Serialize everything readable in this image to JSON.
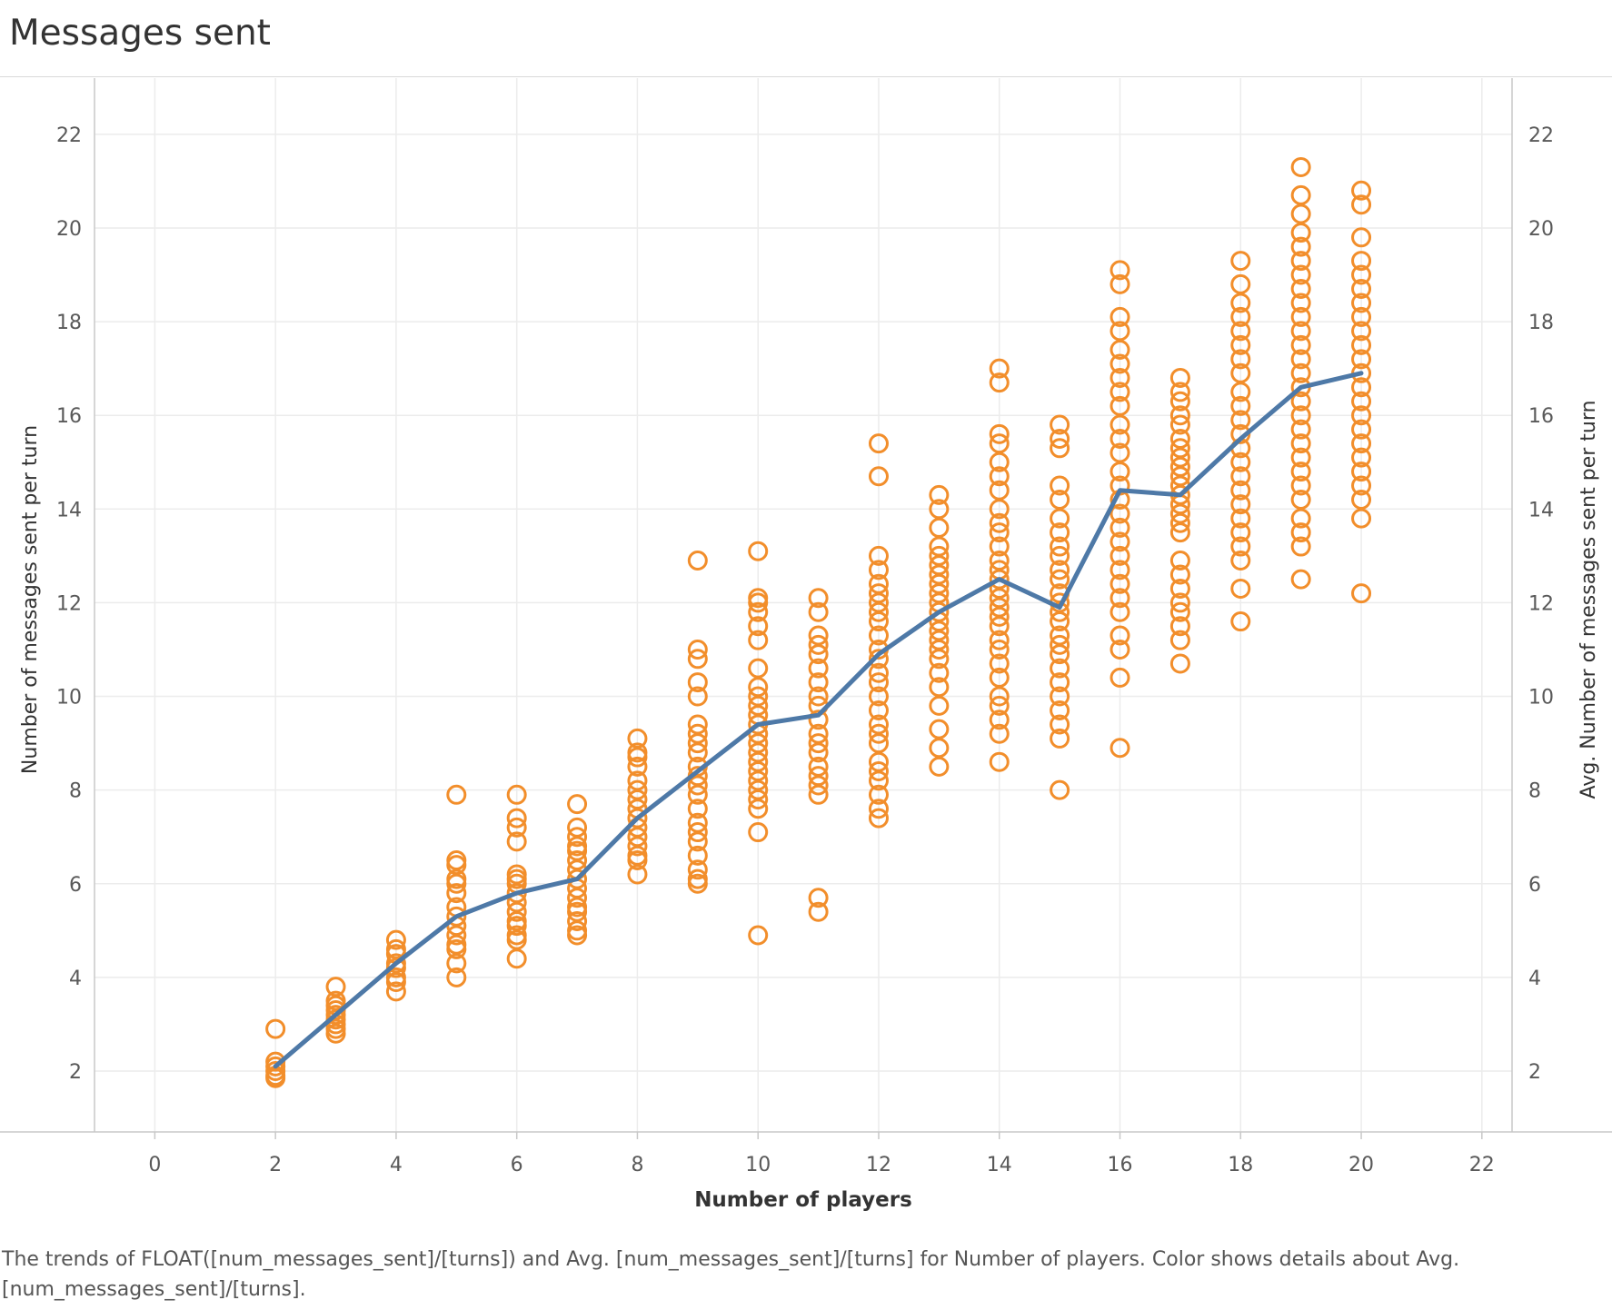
{
  "title": "Messages sent",
  "caption": "The trends of FLOAT([num_messages_sent]/[turns]) and Avg. [num_messages_sent]/[turns] for Number of players.  Color shows details about Avg. [num_messages_sent]/[turns].",
  "colors": {
    "points": "#f28e2b",
    "line": "#4e79a7",
    "grid": "#ececec"
  },
  "chart_data": {
    "type": "scatter",
    "xlabel": "Number of players",
    "ylabel": "Number of messages sent per turn",
    "ylabel_right": "Avg. Number of messages sent per turn",
    "xlim": [
      -1,
      22.5
    ],
    "ylim": [
      0.7,
      23.2
    ],
    "xticks": [
      0,
      2,
      4,
      6,
      8,
      10,
      12,
      14,
      16,
      18,
      20,
      22
    ],
    "yticks": [
      2,
      4,
      6,
      8,
      10,
      12,
      14,
      16,
      18,
      20,
      22
    ],
    "grid": true,
    "series": [
      {
        "name": "FLOAT([num_messages_sent]/[turns])",
        "type": "scatter",
        "groups": [
          {
            "x": 2,
            "y": [
              2.9,
              2.2,
              2.1,
              2.0,
              1.9,
              1.85
            ]
          },
          {
            "x": 3,
            "y": [
              3.8,
              3.5,
              3.4,
              3.3,
              3.2,
              3.1,
              3.0,
              2.9,
              2.8
            ]
          },
          {
            "x": 4,
            "y": [
              4.8,
              4.6,
              4.5,
              4.3,
              4.2,
              4.0,
              3.9,
              3.7
            ]
          },
          {
            "x": 5,
            "y": [
              7.9,
              6.5,
              6.4,
              6.1,
              6.0,
              5.8,
              5.5,
              5.3,
              5.1,
              4.9,
              4.7,
              4.6,
              4.3,
              4.0
            ]
          },
          {
            "x": 6,
            "y": [
              7.9,
              7.4,
              7.2,
              6.9,
              6.2,
              6.1,
              6.0,
              5.8,
              5.6,
              5.4,
              5.2,
              5.1,
              4.9,
              4.8,
              4.4
            ]
          },
          {
            "x": 7,
            "y": [
              7.7,
              7.2,
              7.0,
              6.8,
              6.7,
              6.5,
              6.3,
              6.1,
              5.9,
              5.7,
              5.5,
              5.4,
              5.2,
              5.0,
              4.9
            ]
          },
          {
            "x": 8,
            "y": [
              9.1,
              8.8,
              8.7,
              8.5,
              8.2,
              8.0,
              7.8,
              7.6,
              7.4,
              7.2,
              7.0,
              6.8,
              6.6,
              6.5,
              6.2
            ]
          },
          {
            "x": 9,
            "y": [
              12.9,
              11.0,
              10.8,
              10.3,
              10.0,
              9.4,
              9.2,
              9.0,
              8.8,
              8.5,
              8.3,
              8.1,
              7.9,
              7.6,
              7.3,
              7.1,
              6.9,
              6.6,
              6.3,
              6.1,
              6.0
            ]
          },
          {
            "x": 10,
            "y": [
              13.1,
              12.1,
              12.0,
              11.8,
              11.5,
              11.2,
              10.6,
              10.2,
              10.0,
              9.8,
              9.6,
              9.4,
              9.2,
              9.0,
              8.8,
              8.6,
              8.4,
              8.2,
              8.0,
              7.8,
              7.6,
              7.1,
              4.9
            ]
          },
          {
            "x": 11,
            "y": [
              12.1,
              11.8,
              11.3,
              11.1,
              10.9,
              10.6,
              10.3,
              10.0,
              9.8,
              9.5,
              9.2,
              9.0,
              8.8,
              8.5,
              8.3,
              8.1,
              7.9,
              5.7,
              5.4
            ]
          },
          {
            "x": 12,
            "y": [
              15.4,
              14.7,
              13.0,
              12.7,
              12.4,
              12.2,
              12.0,
              11.8,
              11.6,
              11.3,
              11.0,
              10.8,
              10.5,
              10.3,
              10.0,
              9.7,
              9.4,
              9.2,
              9.0,
              8.6,
              8.4,
              8.2,
              7.9,
              7.6,
              7.4
            ]
          },
          {
            "x": 13,
            "y": [
              14.3,
              14.0,
              13.6,
              13.2,
              13.0,
              12.8,
              12.6,
              12.4,
              12.2,
              12.0,
              11.8,
              11.6,
              11.4,
              11.2,
              11.0,
              10.8,
              10.5,
              10.2,
              9.8,
              9.3,
              8.9,
              8.5
            ]
          },
          {
            "x": 14,
            "y": [
              17.0,
              16.7,
              15.6,
              15.4,
              15.0,
              14.7,
              14.4,
              14.0,
              13.7,
              13.5,
              13.2,
              12.9,
              12.7,
              12.5,
              12.3,
              12.1,
              11.9,
              11.7,
              11.5,
              11.2,
              11.0,
              10.7,
              10.4,
              10.0,
              9.8,
              9.5,
              9.2,
              8.6
            ]
          },
          {
            "x": 15,
            "y": [
              15.8,
              15.5,
              15.3,
              14.5,
              14.2,
              13.8,
              13.5,
              13.2,
              13.0,
              12.7,
              12.5,
              12.2,
              12.0,
              11.8,
              11.6,
              11.3,
              11.1,
              10.9,
              10.6,
              10.3,
              10.0,
              9.7,
              9.4,
              9.1,
              8.0
            ]
          },
          {
            "x": 16,
            "y": [
              19.1,
              18.8,
              18.1,
              17.8,
              17.4,
              17.1,
              16.8,
              16.5,
              16.2,
              15.8,
              15.5,
              15.2,
              14.8,
              14.5,
              14.2,
              13.9,
              13.6,
              13.3,
              13.0,
              12.7,
              12.4,
              12.1,
              11.8,
              11.3,
              11.0,
              10.4,
              8.9
            ]
          },
          {
            "x": 17,
            "y": [
              16.8,
              16.5,
              16.3,
              16.0,
              15.8,
              15.5,
              15.3,
              15.1,
              14.9,
              14.7,
              14.5,
              14.3,
              14.1,
              13.9,
              13.7,
              13.5,
              12.9,
              12.6,
              12.3,
              12.0,
              11.8,
              11.5,
              11.2,
              10.7
            ]
          },
          {
            "x": 18,
            "y": [
              19.3,
              18.8,
              18.4,
              18.1,
              17.8,
              17.5,
              17.2,
              16.9,
              16.5,
              16.2,
              15.9,
              15.6,
              15.3,
              15.0,
              14.7,
              14.4,
              14.1,
              13.8,
              13.5,
              13.2,
              12.9,
              12.3,
              11.6
            ]
          },
          {
            "x": 19,
            "y": [
              21.3,
              20.7,
              20.3,
              19.9,
              19.6,
              19.3,
              19.0,
              18.7,
              18.4,
              18.1,
              17.8,
              17.5,
              17.2,
              16.9,
              16.6,
              16.3,
              16.0,
              15.7,
              15.4,
              15.1,
              14.8,
              14.5,
              14.2,
              13.8,
              13.5,
              13.2,
              12.5
            ]
          },
          {
            "x": 20,
            "y": [
              20.8,
              20.5,
              19.8,
              19.3,
              19.0,
              18.7,
              18.4,
              18.1,
              17.8,
              17.5,
              17.2,
              16.9,
              16.6,
              16.3,
              16.0,
              15.7,
              15.4,
              15.1,
              14.8,
              14.5,
              14.2,
              13.8,
              12.2
            ]
          }
        ]
      },
      {
        "name": "Avg. [num_messages_sent]/[turns]",
        "type": "line",
        "x": [
          2,
          3,
          4,
          5,
          6,
          7,
          8,
          9,
          10,
          11,
          12,
          13,
          14,
          15,
          16,
          17,
          18,
          19,
          20
        ],
        "y": [
          2.1,
          3.2,
          4.3,
          5.3,
          5.8,
          6.1,
          7.4,
          8.4,
          9.4,
          9.6,
          10.9,
          11.8,
          12.5,
          11.9,
          14.4,
          14.3,
          15.5,
          16.6,
          16.9
        ]
      }
    ]
  }
}
